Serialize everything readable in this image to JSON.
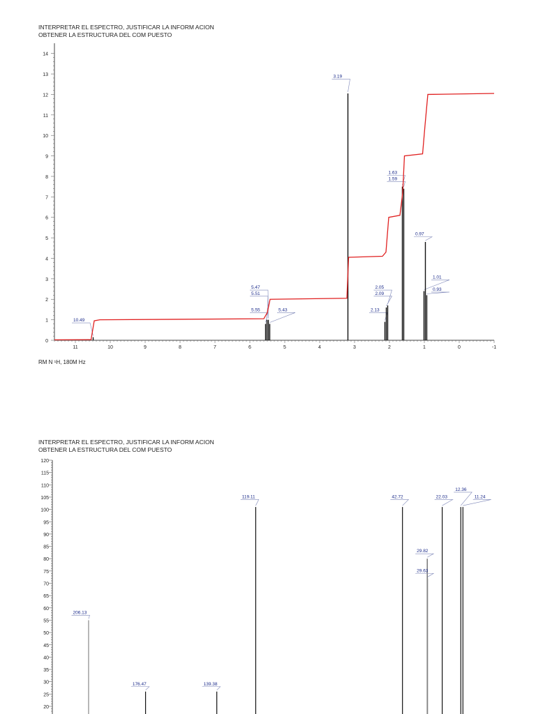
{
  "chart_data": [
    {
      "type": "line",
      "kind": "1H NMR spectrum with integral curve",
      "title_line1": "INTERPRETAR EL ESPECTRO, JUSTIFICAR LA INFORM ACION",
      "title_line2": "OBTENER LA ESTRUCTURA DEL COM PUESTO",
      "caption": "RM N ¹H, 180M Hz",
      "xlim": [
        11.6,
        -1
      ],
      "ylim": [
        0,
        14.5
      ],
      "x_ticks": [
        11,
        10,
        9,
        8,
        7,
        6,
        5,
        4,
        3,
        2,
        1,
        0,
        -1
      ],
      "y_ticks": [
        0,
        1,
        2,
        3,
        4,
        5,
        6,
        7,
        8,
        9,
        10,
        11,
        12,
        13,
        14
      ],
      "peaks": [
        {
          "ppm": 10.49,
          "height": 0.15,
          "label": "10.49",
          "lx": 11.1,
          "ly": 0.85
        },
        {
          "ppm": 5.55,
          "height": 0.8,
          "label": "5.55",
          "lx": 6.0,
          "ly": 1.35
        },
        {
          "ppm": 5.51,
          "height": 1.0,
          "label": "5.51",
          "lx": 6.0,
          "ly": 2.15
        },
        {
          "ppm": 5.47,
          "height": 1.0,
          "label": "5.47",
          "lx": 6.0,
          "ly": 2.45
        },
        {
          "ppm": 5.43,
          "height": 0.8,
          "label": "5.43",
          "lx": 5.22,
          "ly": 1.35
        },
        {
          "ppm": 3.19,
          "height": 12.05,
          "label": "3.19",
          "lx": 3.65,
          "ly": 12.75
        },
        {
          "ppm": 2.13,
          "height": 0.9,
          "label": "2.13",
          "lx": 2.58,
          "ly": 1.35
        },
        {
          "ppm": 2.09,
          "height": 1.6,
          "label": "2.09",
          "lx": 2.45,
          "ly": 2.15
        },
        {
          "ppm": 2.05,
          "height": 1.7,
          "label": "2.05",
          "lx": 2.45,
          "ly": 2.45
        },
        {
          "ppm": 1.63,
          "height": 7.5,
          "label": "1.63",
          "lx": 2.07,
          "ly": 8.05
        },
        {
          "ppm": 1.59,
          "height": 7.4,
          "label": "1.59",
          "lx": 2.07,
          "ly": 7.75
        },
        {
          "ppm": 1.01,
          "height": 2.4,
          "label": "1.01",
          "lx": 0.8,
          "ly": 2.95
        },
        {
          "ppm": 0.97,
          "height": 4.8,
          "label": "0.97",
          "lx": 1.3,
          "ly": 5.05
        },
        {
          "ppm": 0.93,
          "height": 2.2,
          "label": "0.93",
          "lx": 0.8,
          "ly": 2.35
        }
      ],
      "integral_curve": [
        [
          11.6,
          0.02
        ],
        [
          10.55,
          0.03
        ],
        [
          10.46,
          0.95
        ],
        [
          10.3,
          1.0
        ],
        [
          5.6,
          1.05
        ],
        [
          5.5,
          1.35
        ],
        [
          5.42,
          2.0
        ],
        [
          3.22,
          2.05
        ],
        [
          3.17,
          4.05
        ],
        [
          2.2,
          4.1
        ],
        [
          2.1,
          4.3
        ],
        [
          2.02,
          6.0
        ],
        [
          1.7,
          6.1
        ],
        [
          1.62,
          7.2
        ],
        [
          1.57,
          9.0
        ],
        [
          1.05,
          9.1
        ],
        [
          0.98,
          10.5
        ],
        [
          0.9,
          12.0
        ],
        [
          -1,
          12.05
        ]
      ],
      "integral_color": "#e02020"
    },
    {
      "type": "bar",
      "kind": "13C NMR spectrum",
      "title_line1": "INTERPRETAR EL ESPECTRO, JUSTIFICAR LA INFORM ACION",
      "title_line2": "OBTENER LA ESTRUCTURA DEL COM PUESTO",
      "xlim": [
        225,
        -5
      ],
      "ylim": [
        20,
        120
      ],
      "y_ticks": [
        20,
        25,
        30,
        35,
        40,
        45,
        50,
        55,
        60,
        65,
        70,
        75,
        80,
        85,
        90,
        95,
        100,
        105,
        110,
        115,
        120
      ],
      "peaks": [
        {
          "ppm": 206.13,
          "height": 55,
          "label": "206.13",
          "lx": 215,
          "ly": 57,
          "stroke": "#888888"
        },
        {
          "ppm": 176.47,
          "height": 26,
          "label": "176.47",
          "lx": 184,
          "ly": 28,
          "stroke": "#111111"
        },
        {
          "ppm": 139.38,
          "height": 26,
          "label": "139.38",
          "lx": 147,
          "ly": 28,
          "stroke": "#111111"
        },
        {
          "ppm": 119.11,
          "height": 101,
          "label": "119.11",
          "lx": 127,
          "ly": 104,
          "stroke": "#111111"
        },
        {
          "ppm": 42.72,
          "height": 101,
          "label": "42.72",
          "lx": 49,
          "ly": 104,
          "stroke": "#111111"
        },
        {
          "ppm": 29.82,
          "height": 80,
          "label": "29.82",
          "lx": 36,
          "ly": 82,
          "stroke": "#555555"
        },
        {
          "ppm": 29.63,
          "height": 72,
          "label": "29.63",
          "lx": 36,
          "ly": 74,
          "stroke": "#888888"
        },
        {
          "ppm": 22.03,
          "height": 101,
          "label": "22.03",
          "lx": 26,
          "ly": 104,
          "stroke": "#111111"
        },
        {
          "ppm": 12.36,
          "height": 101,
          "label": "12.36",
          "lx": 16,
          "ly": 107,
          "stroke": "#111111"
        },
        {
          "ppm": 11.24,
          "height": 101,
          "label": "11.24",
          "lx": 6,
          "ly": 104,
          "stroke": "#111111"
        }
      ],
      "label_color": "#1a2a8a"
    }
  ]
}
